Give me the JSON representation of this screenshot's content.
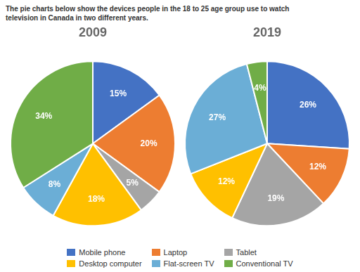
{
  "title": [
    "The pie charts below show the devices people in the 18 to 25 age group use to watch",
    "television in Canada in two different years."
  ],
  "legend": "bottom",
  "chart_data": [
    {
      "type": "pie",
      "title": "2009",
      "categories": [
        "Mobile phone",
        "Laptop",
        "Tablet",
        "Desktop computer",
        "Flat-screen TV",
        "Conventional TV"
      ],
      "values": [
        15,
        20,
        5,
        18,
        8,
        34
      ],
      "value_labels": [
        "15%",
        "20%",
        "5%",
        "18%",
        "8%",
        "34%"
      ],
      "colors": [
        "#4472C4",
        "#ED7D31",
        "#A5A5A5",
        "#FFC000",
        "#6BAED6",
        "#70AD47"
      ],
      "data_labels": true
    },
    {
      "type": "pie",
      "title": "2019",
      "categories": [
        "Mobile phone",
        "Laptop",
        "Tablet",
        "Desktop computer",
        "Flat-screen TV",
        "Conventional TV"
      ],
      "values": [
        26,
        12,
        19,
        12,
        27,
        4
      ],
      "value_labels": [
        "26%",
        "12%",
        "19%",
        "12%",
        "27%",
        "4%"
      ],
      "colors": [
        "#4472C4",
        "#ED7D31",
        "#A5A5A5",
        "#FFC000",
        "#6BAED6",
        "#70AD47"
      ],
      "data_labels": true
    }
  ]
}
